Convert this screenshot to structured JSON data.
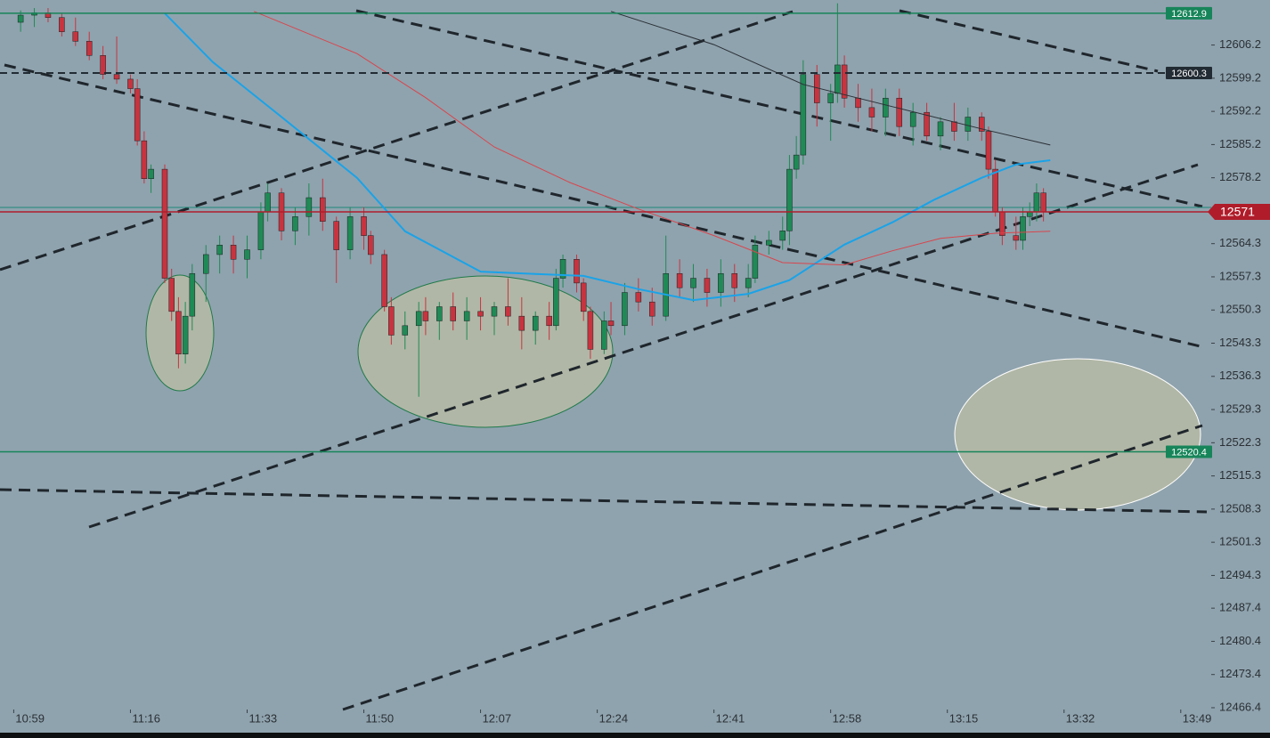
{
  "chart_data": {
    "type": "candlestick",
    "xlim": [
      "10:57",
      "14:02"
    ],
    "ylim": [
      12461.7,
      12615.7
    ],
    "xticks": [
      "10:59",
      "11:16",
      "11:33",
      "11:50",
      "12:07",
      "12:24",
      "12:41",
      "12:58",
      "13:15",
      "13:32",
      "13:49"
    ],
    "yticks": [
      12606.2,
      12599.2,
      12592.2,
      12585.2,
      12578.2,
      12564.3,
      12557.3,
      12550.3,
      12543.3,
      12536.3,
      12529.3,
      12522.3,
      12515.3,
      12508.3,
      12501.3,
      12494.3,
      12487.4,
      12480.4,
      12473.4,
      12466.4
    ],
    "up_color": "#1f8a55",
    "down_color": "#c7343f",
    "candles": {
      "x": [
        "11:00",
        "11:02",
        "11:04",
        "11:06",
        "11:08",
        "11:10",
        "11:12",
        "11:14",
        "11:16",
        "11:17",
        "11:18",
        "11:19",
        "11:21",
        "11:22",
        "11:23",
        "11:24",
        "11:25",
        "11:27",
        "11:29",
        "11:31",
        "11:33",
        "11:35",
        "11:36",
        "11:38",
        "11:40",
        "11:42",
        "11:44",
        "11:46",
        "11:48",
        "11:50",
        "11:51",
        "11:53",
        "11:54",
        "11:56",
        "11:58",
        "11:59",
        "12:01",
        "12:03",
        "12:05",
        "12:07",
        "12:09",
        "12:11",
        "12:13",
        "12:15",
        "12:17",
        "12:18",
        "12:19",
        "12:21",
        "12:22",
        "12:23",
        "12:25",
        "12:26",
        "12:28",
        "12:30",
        "12:32",
        "12:34",
        "12:36",
        "12:38",
        "12:40",
        "12:42",
        "12:44",
        "12:46",
        "12:47",
        "12:49",
        "12:51",
        "12:52",
        "12:53",
        "12:54",
        "12:56",
        "12:58",
        "12:59",
        "13:00",
        "13:02",
        "13:04",
        "13:06",
        "13:08",
        "13:10",
        "13:12",
        "13:14",
        "13:16",
        "13:18",
        "13:20",
        "13:21",
        "13:22",
        "13:23",
        "13:25",
        "13:26",
        "13:27",
        "13:28",
        "13:29"
      ],
      "open": [
        12611,
        12612.5,
        12613,
        12612,
        12609,
        12607,
        12604,
        12600,
        12599,
        12597,
        12586,
        12578,
        12580,
        12557,
        12550,
        12541,
        12549,
        12558,
        12562,
        12564,
        12561,
        12563,
        12571,
        12575,
        12567,
        12570,
        12574,
        12569,
        12563,
        12570,
        12566,
        12562,
        12551,
        12545,
        12547,
        12550,
        12548,
        12551,
        12548,
        12550,
        12549,
        12551,
        12549,
        12546,
        12549,
        12547,
        12557,
        12561,
        12556,
        12550,
        12542,
        12548,
        12547,
        12554,
        12552,
        12549,
        12558,
        12555,
        12557,
        12554,
        12558,
        12555,
        12557,
        12564,
        12565,
        12567,
        12580,
        12583,
        12600,
        12594,
        12596,
        12602,
        12595,
        12593,
        12591,
        12595,
        12589,
        12592,
        12587,
        12590,
        12588,
        12591,
        12588,
        12580,
        12571,
        12566,
        12565,
        12570,
        12571,
        12575
      ],
      "high": [
        12613.5,
        12614,
        12614,
        12613,
        12612,
        12609,
        12606,
        12608,
        12600,
        12599,
        12588,
        12581,
        12581,
        12559,
        12553,
        12552,
        12560,
        12564,
        12566,
        12566,
        12566,
        12573,
        12577,
        12576,
        12572,
        12577,
        12578,
        12570,
        12572,
        12572,
        12567,
        12563,
        12553,
        12550,
        12552,
        12553,
        12552,
        12554,
        12553,
        12553,
        12552,
        12557,
        12553,
        12550,
        12552,
        12559,
        12562,
        12562,
        12557,
        12551,
        12550,
        12552,
        12556,
        12557,
        12555,
        12566,
        12561,
        12560,
        12559,
        12561,
        12560,
        12560,
        12566,
        12567,
        12570,
        12583,
        12587,
        12603,
        12602,
        12598,
        12615,
        12604,
        12598,
        12597,
        12597,
        12597,
        12594,
        12594,
        12591,
        12594,
        12593,
        12592,
        12589,
        12582,
        12572,
        12570,
        12572,
        12573,
        12577,
        12576
      ],
      "low": [
        12609,
        12610,
        12611,
        12608,
        12606,
        12603,
        12599,
        12598,
        12596,
        12585,
        12577,
        12575,
        12556,
        12548,
        12538,
        12539,
        12546,
        12552,
        12558,
        12558,
        12557,
        12561,
        12569,
        12565,
        12564,
        12566,
        12567,
        12556,
        12561,
        12563,
        12560,
        12550,
        12543,
        12542,
        12532,
        12545,
        12544,
        12546,
        12544,
        12546,
        12545,
        12547,
        12542,
        12543,
        12544,
        12546,
        12555,
        12554,
        12548,
        12540,
        12541,
        12545,
        12545,
        12550,
        12547,
        12548,
        12553,
        12552,
        12551,
        12551,
        12552,
        12553,
        12556,
        12562,
        12563,
        12564,
        12578,
        12581,
        12589,
        12586,
        12594,
        12593,
        12590,
        12588,
        12587,
        12587,
        12585,
        12586,
        12584,
        12586,
        12586,
        12586,
        12578,
        12570,
        12564,
        12563,
        12563,
        12568,
        12569,
        12569
      ],
      "close": [
        12612.5,
        12613,
        12612,
        12609,
        12607,
        12604,
        12600,
        12599,
        12597,
        12586,
        12578,
        12580,
        12557,
        12550,
        12541,
        12549,
        12558,
        12562,
        12564,
        12561,
        12563,
        12571,
        12575,
        12567,
        12570,
        12574,
        12569,
        12563,
        12570,
        12566,
        12562,
        12551,
        12545,
        12547,
        12550,
        12548,
        12551,
        12548,
        12550,
        12549,
        12551,
        12549,
        12546,
        12549,
        12547,
        12557,
        12561,
        12556,
        12550,
        12542,
        12548,
        12547,
        12554,
        12552,
        12549,
        12558,
        12555,
        12557,
        12554,
        12558,
        12555,
        12557,
        12564,
        12565,
        12567,
        12580,
        12583,
        12600,
        12594,
        12596,
        12602,
        12595,
        12593,
        12591,
        12595,
        12589,
        12592,
        12587,
        12590,
        12588,
        12591,
        12588,
        12580,
        12571,
        12566,
        12565,
        12570,
        12571,
        12575,
        12571
      ]
    },
    "lines": [
      {
        "color": "#1aa3e8",
        "x": [
          "11:21",
          "11:28",
          "11:37",
          "11:49",
          "11:56",
          "12:07",
          "12:15",
          "12:22",
          "12:30",
          "12:38",
          "12:46",
          "12:52",
          "13:00",
          "13:07",
          "13:13",
          "13:20",
          "13:25",
          "13:30"
        ],
        "values": [
          12612.9,
          12602.6,
          12592.2,
          12578.2,
          12566.9,
          12558.4,
          12557.9,
          12557.5,
          12554.7,
          12552.4,
          12553.7,
          12556.6,
          12564.1,
          12568.8,
          12573.5,
          12578.2,
          12581.0,
          12581.9
        ]
      },
      {
        "color": "#d8464d",
        "x": [
          "11:34",
          "11:49",
          "11:59",
          "12:09",
          "12:20",
          "12:30",
          "12:41",
          "12:51",
          "13:00",
          "13:07",
          "13:14",
          "13:22",
          "13:30"
        ],
        "values": [
          12613.3,
          12604.4,
          12595.1,
          12584.7,
          12577.2,
          12571.6,
          12566.0,
          12560.3,
          12559.8,
          12562.8,
          12565.4,
          12566.5,
          12566.9
        ]
      },
      {
        "color": "#2a2f35",
        "x": [
          "12:26",
          "12:41",
          "12:54",
          "13:07",
          "13:20",
          "13:30"
        ],
        "values": [
          12613.3,
          12606.3,
          12597.9,
          12593.2,
          12588.5,
          12585.1
        ]
      }
    ],
    "price_lines": [
      {
        "value": 12612.9,
        "color": "#17855a",
        "style": "solid"
      },
      {
        "value": 12600.3,
        "color": "#222b33",
        "style": "dashed"
      },
      {
        "value": 12571.0,
        "color": "#b01c2a",
        "style": "solid"
      },
      {
        "value": 12520.4,
        "color": "#17855a",
        "style": "solid"
      }
    ]
  }
}
